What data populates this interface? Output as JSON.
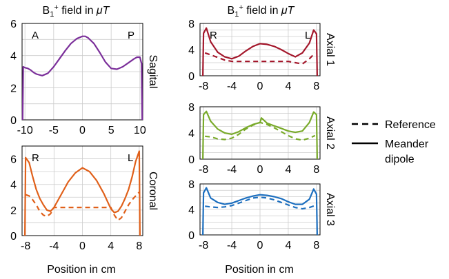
{
  "figure": {
    "left_title_main": "B",
    "left_title_sub": "1",
    "left_title_sup": "+",
    "left_title_rest": " field in ",
    "left_title_unit": "μT",
    "right_title_main": "B",
    "right_title_sub": "1",
    "right_title_sup": "+",
    "right_title_rest": " field in ",
    "right_title_unit": "μT",
    "left_xlabel": "Position in cm",
    "right_xlabel": "Position in cm",
    "legend": {
      "reference": "Reference",
      "meander_line1": "Meander",
      "meander_line2": "dipole"
    }
  },
  "colors": {
    "sagittal": "#7b2f9a",
    "coronal": "#e0601a",
    "axial1": "#a4182c",
    "axial2": "#79aa2a",
    "axial3": "#1d6fbf",
    "grid": "#cccccc"
  },
  "chart_data": [
    {
      "type": "line",
      "title": "Sagital",
      "corner_labels": [
        "A",
        "P"
      ],
      "xlim": [
        -10.5,
        10.5
      ],
      "ylim": [
        0,
        6
      ],
      "xticks": [
        -10,
        -5,
        0,
        5,
        10
      ],
      "yticks": [
        0,
        2,
        4,
        6
      ],
      "color": "#7b2f9a",
      "series": [
        {
          "style": "solid",
          "x": [
            -10.4,
            -10.3,
            -10,
            -9.5,
            -9,
            -8.5,
            -8,
            -7,
            -6,
            -5,
            -4,
            -3,
            -2,
            -1,
            0,
            0.5,
            1,
            2,
            3,
            4,
            5,
            6,
            7,
            8,
            9,
            9.5,
            10,
            10.3,
            10.4
          ],
          "values": [
            0,
            3.3,
            3.25,
            3.2,
            3.1,
            2.95,
            2.85,
            2.75,
            2.9,
            3.3,
            3.8,
            4.3,
            4.75,
            5.05,
            5.2,
            5.2,
            5.1,
            4.75,
            4.2,
            3.6,
            3.2,
            3.15,
            3.3,
            3.55,
            3.8,
            3.9,
            3.9,
            3.5,
            0
          ]
        }
      ]
    },
    {
      "type": "line",
      "title": "Coronal",
      "corner_labels": [
        "R",
        "L"
      ],
      "xlim": [
        -8.5,
        8.5
      ],
      "ylim": [
        0,
        7
      ],
      "xticks": [
        -8,
        -4,
        0,
        4,
        8
      ],
      "yticks": [
        0,
        2,
        4,
        6
      ],
      "color": "#e0601a",
      "series": [
        {
          "style": "solid",
          "x": [
            -8.1,
            -8,
            -7.5,
            -7,
            -6.5,
            -6,
            -5.5,
            -5,
            -4.5,
            -4,
            -3,
            -2,
            -1,
            0,
            1,
            2,
            3,
            4,
            4.5,
            5,
            5.5,
            6,
            6.5,
            7,
            7.5,
            8,
            8.1
          ],
          "values": [
            0,
            6.1,
            5.7,
            4.6,
            3.6,
            2.9,
            2.4,
            2.0,
            1.9,
            2.2,
            3.2,
            4.2,
            4.9,
            5.3,
            5.0,
            4.3,
            3.3,
            2.1,
            1.8,
            1.9,
            2.3,
            2.9,
            3.6,
            4.6,
            5.8,
            6.6,
            0
          ]
        },
        {
          "style": "dashed",
          "x": [
            -8,
            -7.5,
            -7,
            -6.5,
            -6,
            -5.5,
            -5,
            -4.5,
            -4,
            4,
            4.5,
            5,
            5.5,
            6,
            6.5,
            7,
            7.5,
            8
          ],
          "values": [
            3.2,
            3.1,
            2.8,
            2.4,
            1.9,
            1.6,
            1.5,
            1.7,
            2.2,
            2.2,
            1.6,
            1.2,
            1.4,
            1.9,
            2.4,
            2.8,
            3.1,
            3.4
          ]
        }
      ]
    },
    {
      "type": "line",
      "title": "Axial 1",
      "corner_labels": [
        "R",
        "L"
      ],
      "xlim": [
        -8.5,
        8.5
      ],
      "ylim": [
        0,
        8
      ],
      "xticks": [
        -8,
        -4,
        0,
        4,
        8
      ],
      "yticks": [
        0,
        4,
        8
      ],
      "color": "#a4182c",
      "series": [
        {
          "style": "solid",
          "x": [
            -8.1,
            -8,
            -7.6,
            -7,
            -6,
            -5,
            -4,
            -3,
            -2,
            -1,
            0,
            1,
            2,
            3,
            4,
            5,
            6,
            7,
            7.6,
            8,
            8.1
          ],
          "values": [
            0,
            6.5,
            7.3,
            5.2,
            3.6,
            2.9,
            2.6,
            3.0,
            3.8,
            4.5,
            4.9,
            4.8,
            4.5,
            4.0,
            3.4,
            2.9,
            3.5,
            5.0,
            7.0,
            6.4,
            0
          ]
        },
        {
          "style": "dashed",
          "x": [
            -7.8,
            -7,
            -6,
            -5,
            -4,
            4,
            5,
            6,
            7,
            7.8
          ],
          "values": [
            3.5,
            3.2,
            2.8,
            2.4,
            2.2,
            2.2,
            2.0,
            1.8,
            2.6,
            3.5
          ]
        }
      ]
    },
    {
      "type": "line",
      "title": "Axial 2",
      "corner_labels": [],
      "xlim": [
        -8.5,
        8.5
      ],
      "ylim": [
        0,
        8
      ],
      "xticks": [
        -8,
        -4,
        0,
        4,
        8
      ],
      "yticks": [
        0,
        4,
        8
      ],
      "color": "#79aa2a",
      "series": [
        {
          "style": "solid",
          "x": [
            -8.1,
            -8,
            -7.6,
            -7,
            -6,
            -5,
            -4,
            -3,
            -2,
            -1,
            0,
            0.2,
            1,
            2,
            3,
            4,
            5,
            6,
            7,
            7.6,
            8,
            8.1
          ],
          "values": [
            0,
            6.8,
            7.3,
            5.8,
            4.6,
            4.0,
            3.8,
            4.2,
            4.8,
            5.3,
            5.6,
            6.3,
            5.5,
            5.1,
            4.7,
            4.3,
            4.1,
            4.3,
            5.6,
            7.2,
            6.8,
            0
          ]
        },
        {
          "style": "dashed",
          "x": [
            -7.8,
            -7,
            -6,
            -5,
            -4,
            -3,
            -2,
            -1,
            0,
            1,
            2,
            3,
            4,
            5,
            6,
            7,
            7.8
          ],
          "values": [
            3.5,
            3.4,
            3.1,
            3.0,
            3.2,
            3.8,
            4.6,
            5.2,
            5.6,
            5.3,
            4.8,
            4.2,
            3.6,
            3.1,
            2.9,
            3.2,
            3.6
          ]
        }
      ]
    },
    {
      "type": "line",
      "title": "Axial 3",
      "corner_labels": [],
      "xlim": [
        -8.5,
        8.5
      ],
      "ylim": [
        0,
        8
      ],
      "xticks": [
        -8,
        -4,
        0,
        4,
        8
      ],
      "yticks": [
        0,
        4,
        8
      ],
      "color": "#1d6fbf",
      "series": [
        {
          "style": "solid",
          "x": [
            -8.1,
            -8,
            -7.6,
            -7,
            -6,
            -5,
            -4,
            -3,
            -2,
            -1,
            0,
            1,
            2,
            3,
            4,
            5,
            6,
            7,
            7.6,
            8,
            8.1
          ],
          "values": [
            0,
            6.6,
            7.4,
            5.8,
            5.1,
            4.8,
            5.0,
            5.4,
            5.8,
            6.1,
            6.3,
            6.2,
            6.0,
            5.7,
            5.2,
            4.8,
            4.8,
            5.6,
            7.2,
            6.4,
            0
          ]
        },
        {
          "style": "dashed",
          "x": [
            -7.8,
            -7,
            -6,
            -5,
            -4,
            -3,
            -2,
            -1,
            0,
            1,
            2,
            3,
            4,
            5,
            6,
            7,
            7.8
          ],
          "values": [
            4.5,
            4.4,
            4.3,
            4.4,
            4.6,
            5.0,
            5.4,
            5.8,
            5.9,
            5.8,
            5.5,
            5.1,
            4.7,
            4.3,
            4.1,
            4.3,
            4.6
          ]
        }
      ]
    }
  ]
}
